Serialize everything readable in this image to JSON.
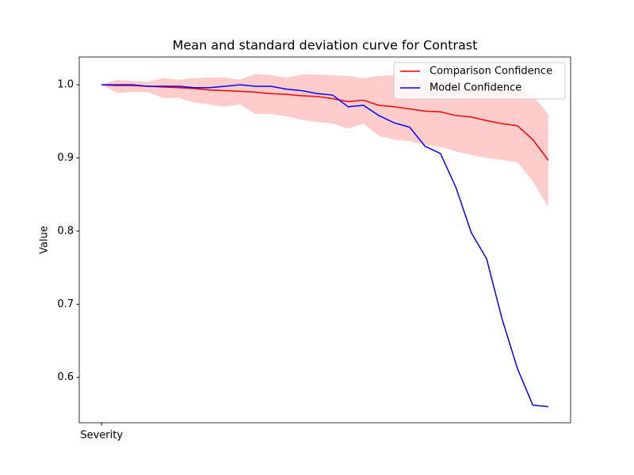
{
  "chart_data": {
    "type": "line",
    "title": "Mean and standard deviation curve for Contrast",
    "y_label": "Value",
    "x": [
      0,
      1,
      2,
      3,
      4,
      5,
      6,
      7,
      8,
      9,
      10,
      11,
      12,
      13,
      14,
      15,
      16,
      17,
      18,
      19,
      20,
      21,
      22,
      23,
      24,
      25,
      26,
      27,
      28,
      29
    ],
    "xlim": [
      -1.45,
      30.45
    ],
    "xticks": [
      {
        "value": 0,
        "label": "Severity"
      }
    ],
    "ylim": [
      0.538,
      1.038
    ],
    "yticks": [
      0.6,
      0.7,
      0.8,
      0.9,
      {
        "value": 1,
        "label": "1.0"
      }
    ],
    "legend": "upper right",
    "series": [
      {
        "name": "Comparison Confidence",
        "color": "#ff0000",
        "values": [
          1.0,
          0.999,
          0.999,
          0.998,
          0.997,
          0.996,
          0.995,
          0.993,
          0.992,
          0.991,
          0.99,
          0.988,
          0.987,
          0.985,
          0.984,
          0.981,
          0.977,
          0.979,
          0.972,
          0.97,
          0.967,
          0.964,
          0.963,
          0.958,
          0.956,
          0.951,
          0.947,
          0.944,
          0.925,
          0.897
        ],
        "band": {
          "color": "#ff0000",
          "upper": [
            1.0,
            1.007,
            1.005,
            1.004,
            1.009,
            1.007,
            1.009,
            1.01,
            1.01,
            1.007,
            1.015,
            1.013,
            1.01,
            1.014,
            1.014,
            1.013,
            1.012,
            1.009,
            1.012,
            1.013,
            1.01,
            1.007,
            1.005,
            1.003,
            1.0,
            0.998,
            0.995,
            0.992,
            0.985,
            0.96
          ],
          "lower": [
            1.0,
            0.989,
            0.99,
            0.99,
            0.982,
            0.982,
            0.976,
            0.973,
            0.97,
            0.973,
            0.96,
            0.96,
            0.957,
            0.952,
            0.949,
            0.947,
            0.94,
            0.947,
            0.93,
            0.925,
            0.923,
            0.918,
            0.915,
            0.909,
            0.904,
            0.9,
            0.897,
            0.894,
            0.868,
            0.833
          ]
        }
      },
      {
        "name": "Model Confidence",
        "color": "#0000ff",
        "values": [
          1.0,
          1.0,
          1.0,
          0.998,
          0.998,
          0.998,
          0.996,
          0.996,
          0.998,
          1.0,
          0.998,
          0.998,
          0.994,
          0.992,
          0.988,
          0.986,
          0.97,
          0.972,
          0.958,
          0.948,
          0.942,
          0.916,
          0.906,
          0.86,
          0.798,
          0.762,
          0.68,
          0.612,
          0.562,
          0.56
        ]
      }
    ]
  }
}
